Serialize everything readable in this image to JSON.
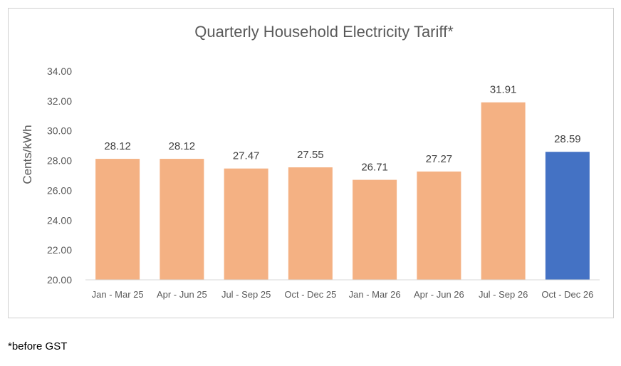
{
  "chart_data": {
    "type": "bar",
    "title": "Quarterly Household Electricity Tariff*",
    "xlabel": "",
    "ylabel": "Cents/kWh",
    "categories": [
      "Jan - Mar 25",
      "Apr - Jun 25",
      "Jul - Sep 25",
      "Oct - Dec 25",
      "Jan - Mar 26",
      "Apr - Jun 26",
      "Jul - Sep 26",
      "Oct - Dec 26"
    ],
    "values": [
      28.12,
      28.12,
      27.47,
      27.55,
      26.71,
      27.27,
      31.91,
      28.59
    ],
    "value_labels": [
      "28.12",
      "28.12",
      "27.47",
      "27.55",
      "26.71",
      "27.27",
      "31.91",
      "28.59"
    ],
    "ylim": [
      20,
      34
    ],
    "yticks": [
      20,
      22,
      24,
      26,
      28,
      30,
      32,
      34
    ],
    "ytick_labels": [
      "20.00",
      "22.00",
      "24.00",
      "26.00",
      "28.00",
      "30.00",
      "32.00",
      "34.00"
    ],
    "grid": false,
    "legend": "none",
    "colors": {
      "default_bar": "#F4B183",
      "highlight_bar": "#4472C4",
      "title": "#595959",
      "axis_text": "#595959",
      "data_label": "#404040",
      "axis_line": "#d9d9d9"
    },
    "highlight_index": 7
  },
  "footnote": "*before GST"
}
